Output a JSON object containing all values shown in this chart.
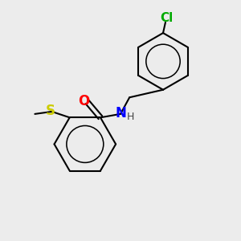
{
  "background_color": "#ececec",
  "atom_colors": {
    "C": "#000000",
    "N": "#0000ff",
    "O": "#ff0000",
    "S": "#cccc00",
    "Cl": "#00aa00",
    "H": "#444444"
  },
  "bond_color": "#000000",
  "bond_width": 1.5,
  "font_size_atom": 11,
  "font_size_h": 9,
  "figsize": [
    3.0,
    3.0
  ],
  "dpi": 100
}
